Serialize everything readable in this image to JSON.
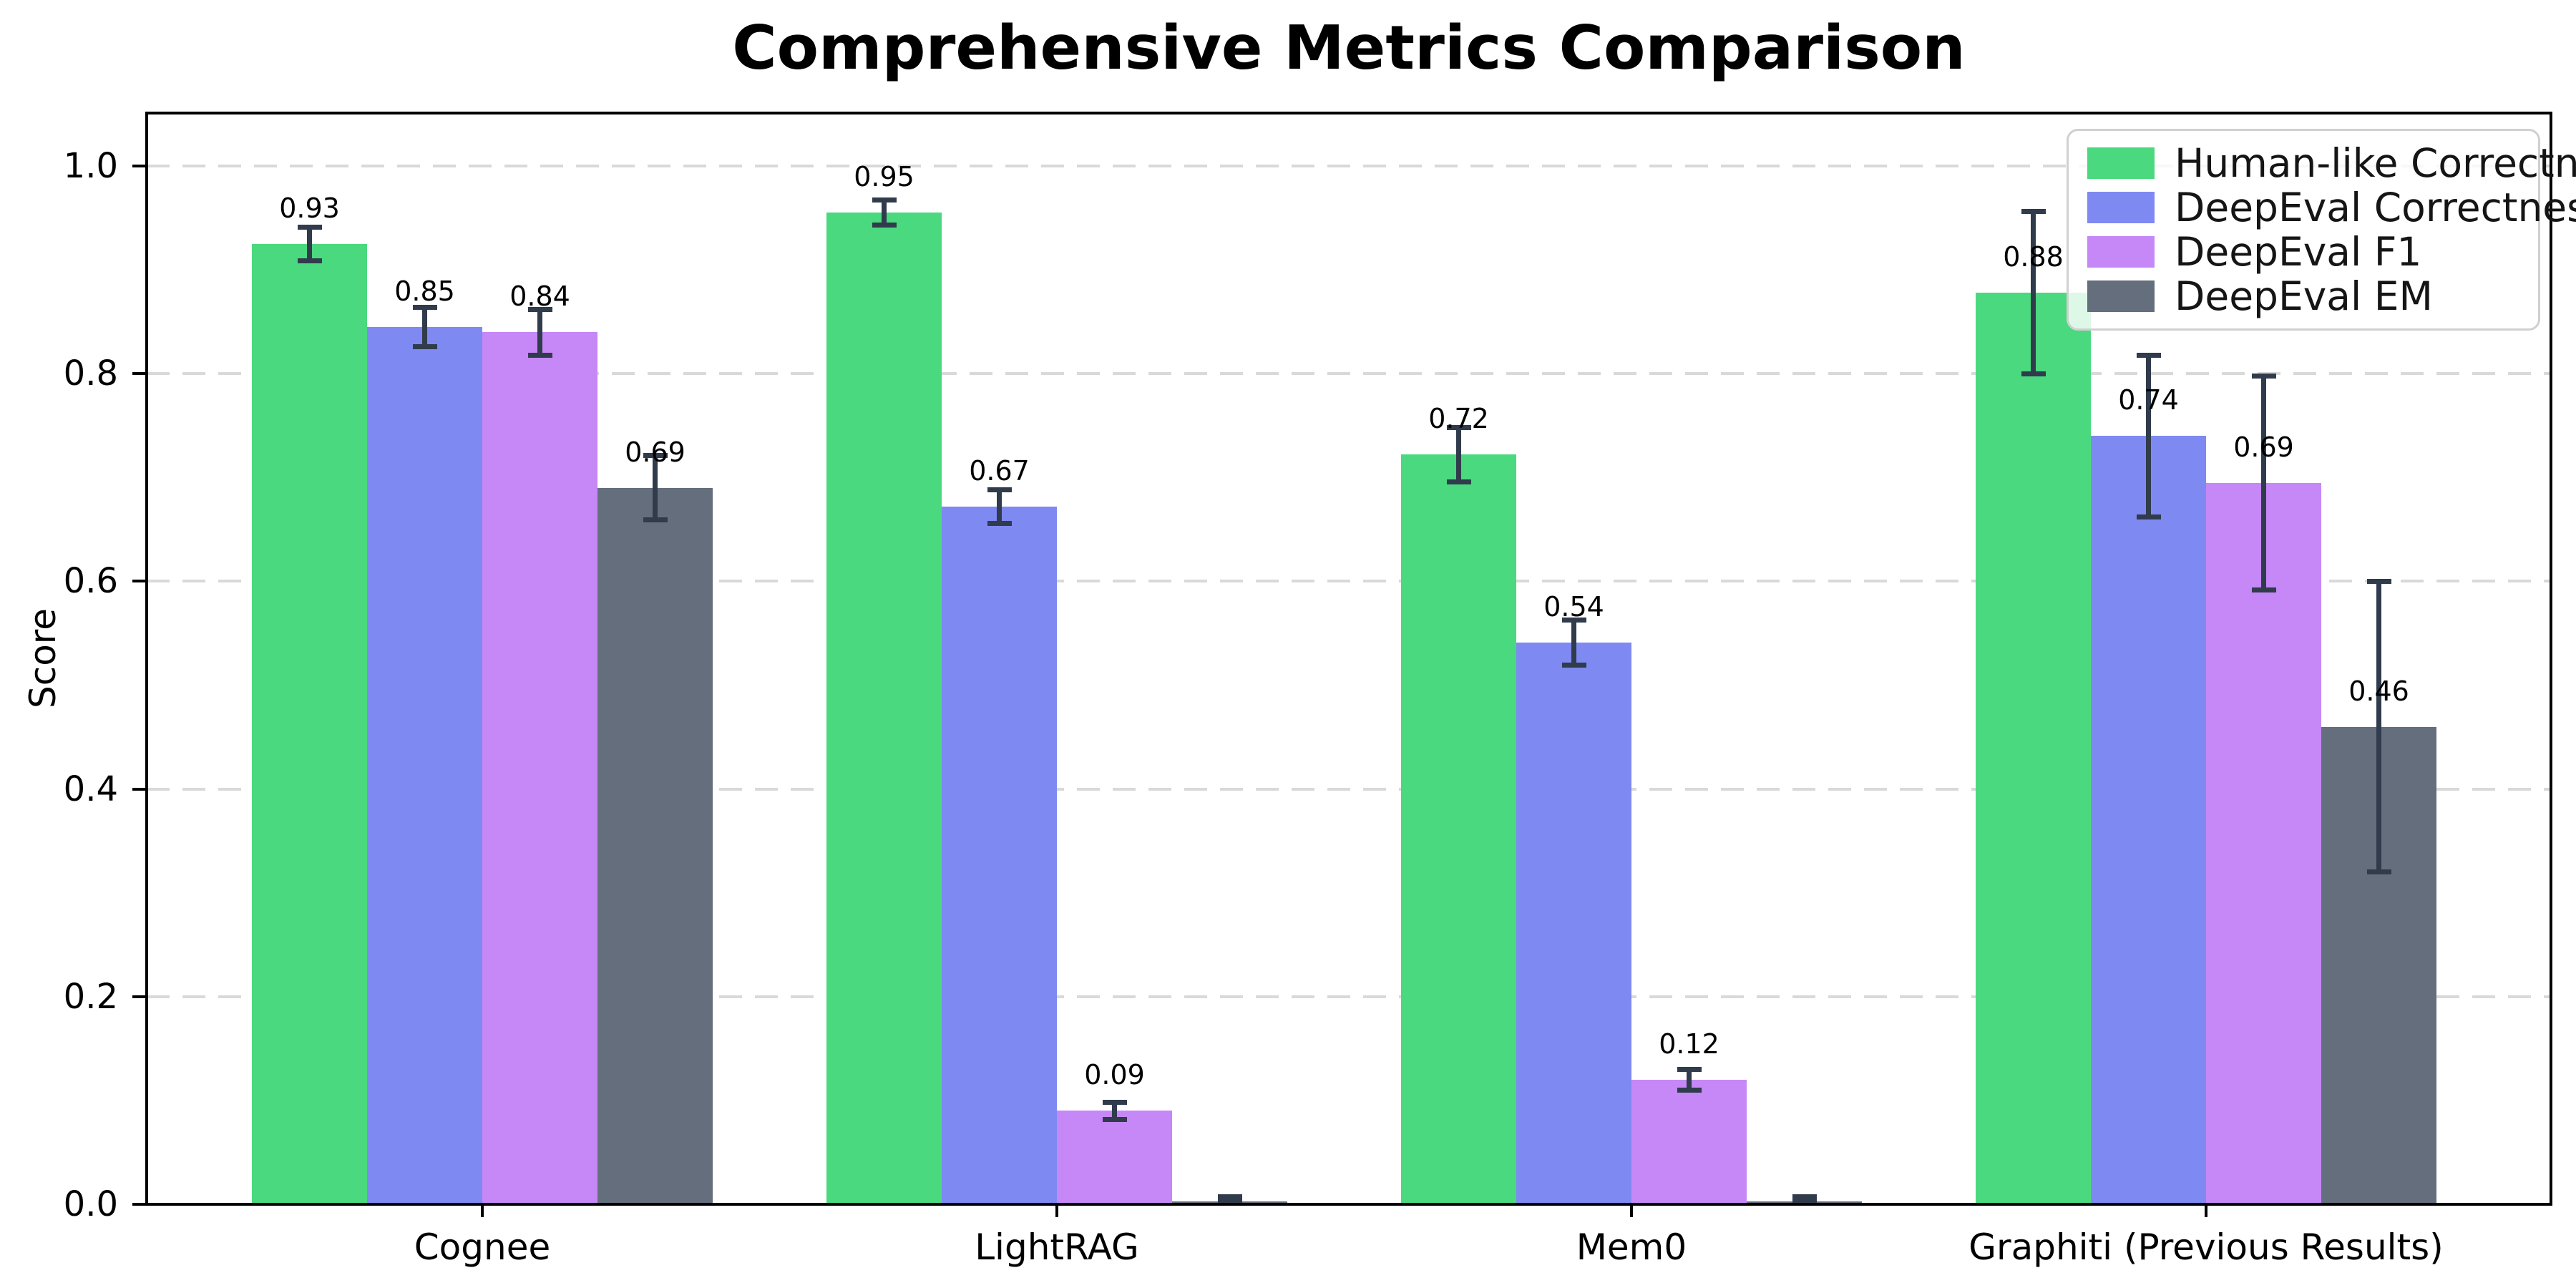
{
  "chart_data": {
    "type": "bar",
    "title": "Comprehensive Metrics Comparison",
    "xlabel": "",
    "ylabel": "Score",
    "categories": [
      "Cognee",
      "LightRAG",
      "Mem0",
      "Graphiti (Previous Results)"
    ],
    "series": [
      {
        "name": "Human-like Correctness",
        "color": "#4ad97e",
        "values": [
          0.925,
          0.955,
          0.722,
          0.878
        ],
        "labels": [
          "0.93",
          "0.95",
          "0.72",
          "0.88"
        ],
        "errors": [
          0.016,
          0.012,
          0.026,
          0.078
        ]
      },
      {
        "name": "DeepEval Correctness",
        "color": "#7f89f2",
        "values": [
          0.845,
          0.672,
          0.541,
          0.74
        ],
        "labels": [
          "0.85",
          "0.67",
          "0.54",
          "0.74"
        ],
        "errors": [
          0.019,
          0.016,
          0.022,
          0.078
        ]
      },
      {
        "name": "DeepEval F1",
        "color": "#c687f7",
        "values": [
          0.84,
          0.09,
          0.12,
          0.695
        ],
        "labels": [
          "0.84",
          "0.09",
          "0.12",
          "0.69"
        ],
        "errors": [
          0.022,
          0.008,
          0.01,
          0.103
        ]
      },
      {
        "name": "DeepEval EM",
        "color": "#656e7c",
        "values": [
          0.69,
          0.003,
          0.003,
          0.46
        ],
        "labels": [
          "0.69",
          "",
          "",
          "0.46"
        ],
        "errors": [
          0.031,
          0.004,
          0.004,
          0.14
        ]
      }
    ],
    "yticks": [
      "0.0",
      "0.2",
      "0.4",
      "0.6",
      "0.8",
      "1.0"
    ],
    "ytick_values": [
      0.0,
      0.2,
      0.4,
      0.6,
      0.8,
      1.0
    ],
    "ylim": [
      0,
      1.05
    ],
    "grid": "horizontal-dashed",
    "legend_position": "upper right",
    "error_bar_color": "#303b4c",
    "gridline_color": "#d9d9d9"
  }
}
